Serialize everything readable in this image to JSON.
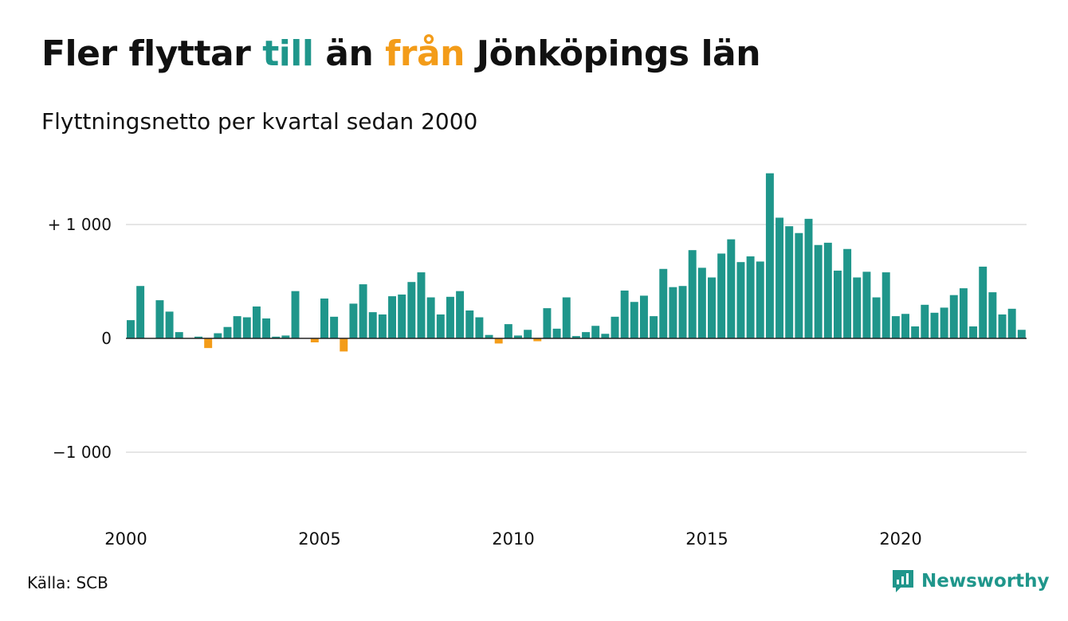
{
  "title": {
    "part1": "Fler flyttar ",
    "part2": "till",
    "part3": " än ",
    "part4": "från",
    "part5": " Jönköpings län"
  },
  "subtitle": "Flyttningsnetto per kvartal sedan 2000",
  "source": "Källa: SCB",
  "brand": "Newsworthy",
  "colors": {
    "positive": "#1f968b",
    "negative": "#f39c19",
    "grid": "#dddddd",
    "axis": "#222222",
    "text": "#111111",
    "brand": "#1f968b"
  },
  "icons": {
    "brand": "newsworthy-logo-icon"
  },
  "chart_data": {
    "type": "bar",
    "title": "Fler flyttar till än från Jönköpings län",
    "subtitle": "Flyttningsnetto per kvartal sedan 2000",
    "xlabel": "",
    "ylabel": "",
    "ylim": [
      -1600,
      1500
    ],
    "grid": true,
    "legend": "none",
    "x_start_year": 2000,
    "periods_per_year": 4,
    "y_ticks": [
      {
        "value": 1000,
        "label": "+ 1 000"
      },
      {
        "value": 0,
        "label": "0"
      },
      {
        "value": -1000,
        "label": "−1 000"
      }
    ],
    "x_ticks": [
      {
        "year": 2000,
        "label": "2000"
      },
      {
        "year": 2005,
        "label": "2005"
      },
      {
        "year": 2010,
        "label": "2010"
      },
      {
        "year": 2015,
        "label": "2015"
      },
      {
        "year": 2020,
        "label": "2020"
      }
    ],
    "values": [
      160,
      460,
      0,
      335,
      235,
      55,
      0,
      15,
      -85,
      45,
      100,
      195,
      185,
      280,
      175,
      15,
      25,
      415,
      0,
      -35,
      350,
      190,
      -115,
      305,
      475,
      230,
      210,
      370,
      385,
      495,
      580,
      360,
      210,
      365,
      415,
      245,
      185,
      30,
      -45,
      125,
      25,
      75,
      -25,
      265,
      85,
      360,
      20,
      55,
      110,
      40,
      190,
      420,
      320,
      375,
      195,
      610,
      450,
      460,
      775,
      620,
      535,
      745,
      870,
      670,
      720,
      675,
      1450,
      1060,
      985,
      925,
      1050,
      820,
      840,
      595,
      785,
      535,
      585,
      360,
      580,
      195,
      215,
      105,
      295,
      225,
      270,
      380,
      440,
      105,
      630,
      405,
      210,
      260,
      75
    ]
  }
}
